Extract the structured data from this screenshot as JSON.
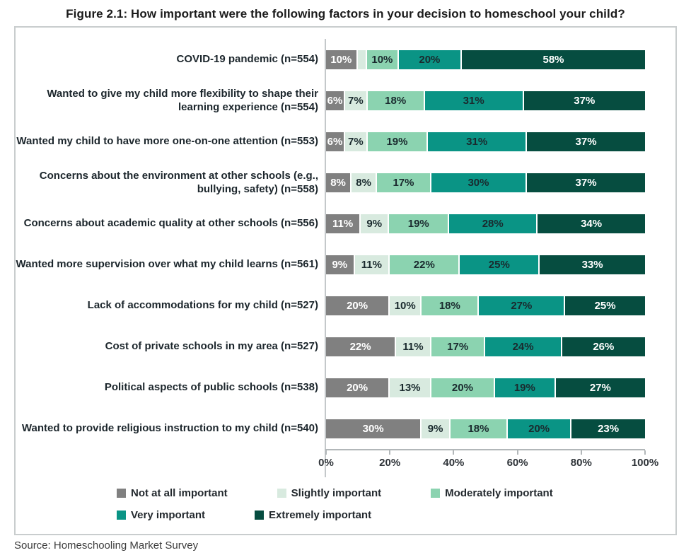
{
  "title": "Figure 2.1: How important were the following factors in your decision to homeschool your child?",
  "source": "Source: Homeschooling Market Survey",
  "colors": {
    "not_at_all_important": "#808080",
    "slightly_important": "#d8eadf",
    "moderately_important": "#8bd3b0",
    "very_important": "#0a9485",
    "extremely_important": "#064d40",
    "dark_label_text": "#1a2a2e",
    "light_label_text": "#ffffff",
    "axis_line": "#b2b7b9",
    "box_border": "#c9cdce"
  },
  "chart_data": {
    "type": "bar",
    "stacked": true,
    "orientation": "horizontal",
    "title": "Figure 2.1: How important were the following factors in your decision to homeschool your child?",
    "xlabel": "",
    "ylabel": "",
    "xlim": [
      0,
      100
    ],
    "grid": false,
    "legend_position": "bottom",
    "x_ticks": [
      "0%",
      "20%",
      "40%",
      "60%",
      "80%",
      "100%"
    ],
    "categories": [
      "COVID-19 pandemic (n=554)",
      "Wanted to give my child more flexibility to shape their learning experience (n=554)",
      "Wanted my child to have more one-on-one attention (n=553)",
      "Concerns about the environment at other schools (e.g., bullying, safety) (n=558)",
      "Concerns about academic quality at other schools (n=556)",
      "Wanted more supervision over what my child learns (n=561)",
      "Lack of accommodations for my child (n=527)",
      "Cost of private schools in my area (n=527)",
      "Political aspects of public schools (n=538)",
      "Wanted to provide religious instruction to my child (n=540)"
    ],
    "series": [
      {
        "name": "Not at all important",
        "color": "#808080",
        "text_color": "#ffffff",
        "values": [
          10,
          6,
          6,
          8,
          11,
          9,
          20,
          22,
          20,
          30
        ],
        "labels": [
          "10%",
          "6%",
          "6%",
          "8%",
          "11%",
          "9%",
          "20%",
          "22%",
          "20%",
          "30%"
        ]
      },
      {
        "name": "Slightly important",
        "color": "#d8eadf",
        "text_color": "#1a2a2e",
        "values": [
          3,
          7,
          7,
          8,
          9,
          11,
          10,
          11,
          13,
          9
        ],
        "labels": [
          "",
          "7%",
          "7%",
          "8%",
          "9%",
          "11%",
          "10%",
          "11%",
          "13%",
          "9%"
        ]
      },
      {
        "name": "Moderately important",
        "color": "#8bd3b0",
        "text_color": "#1a2a2e",
        "values": [
          10,
          18,
          19,
          17,
          19,
          22,
          18,
          17,
          20,
          18
        ],
        "labels": [
          "10%",
          "18%",
          "19%",
          "17%",
          "19%",
          "22%",
          "18%",
          "17%",
          "20%",
          "18%"
        ]
      },
      {
        "name": "Very important",
        "color": "#0a9485",
        "text_color": "#1a2a2e",
        "values": [
          20,
          31,
          31,
          30,
          28,
          25,
          27,
          24,
          19,
          20
        ],
        "labels": [
          "20%",
          "31%",
          "31%",
          "30%",
          "28%",
          "25%",
          "27%",
          "24%",
          "19%",
          "20%"
        ]
      },
      {
        "name": "Extremely important",
        "color": "#064d40",
        "text_color": "#ffffff",
        "values": [
          58,
          37,
          37,
          37,
          34,
          33,
          25,
          26,
          27,
          23
        ],
        "labels": [
          "58%",
          "37%",
          "37%",
          "37%",
          "34%",
          "33%",
          "25%",
          "26%",
          "27%",
          "23%"
        ]
      }
    ],
    "notes": "The 'Slightly important' segment of the COVID-19 pandemic bar (~3%) carries no printed label in the figure."
  },
  "legend_rows": [
    [
      0,
      1,
      2
    ],
    [
      3,
      4
    ]
  ]
}
